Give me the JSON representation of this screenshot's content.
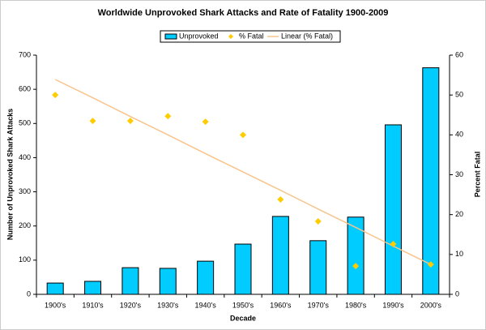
{
  "chart_data": {
    "type": "bar",
    "title": "Worldwide Unprovoked Shark Attacks and Rate of Fatality 1900-2009",
    "x_label": "Decade",
    "y_label": "Number of Unprovoked Shark Attacks",
    "y2_label": "Percent Fatal",
    "categories": [
      "1900's",
      "1910's",
      "1920's",
      "1930's",
      "1940's",
      "1950's",
      "1960's",
      "1970's",
      "1980's",
      "1990's",
      "2000's"
    ],
    "series": [
      {
        "name": "Unprovoked",
        "type": "bar",
        "color": "#00ccff",
        "values": [
          33,
          38,
          78,
          76,
          97,
          147,
          228,
          157,
          226,
          496,
          663
        ]
      },
      {
        "name": "% Fatal",
        "type": "scatter",
        "axis": "y2",
        "color": "#ffcc00",
        "values": [
          50,
          43.5,
          43.5,
          44.7,
          43.3,
          40,
          23.8,
          18.3,
          7.1,
          12.6,
          7.5
        ]
      },
      {
        "name": "Linear (% Fatal)",
        "type": "line",
        "axis": "y2",
        "color": "#f9c48c",
        "values": [
          53.9,
          49.3,
          44.6,
          40.0,
          35.3,
          30.7,
          26.1,
          21.4,
          16.8,
          12.1,
          7.5
        ]
      }
    ],
    "ylim": [
      0,
      700
    ],
    "yticks": [
      0,
      100,
      200,
      300,
      400,
      500,
      600,
      700
    ],
    "y2lim": [
      0,
      60
    ],
    "y2ticks": [
      0,
      10,
      20,
      30,
      40,
      50,
      60
    ],
    "grid": false,
    "legend": "top"
  }
}
